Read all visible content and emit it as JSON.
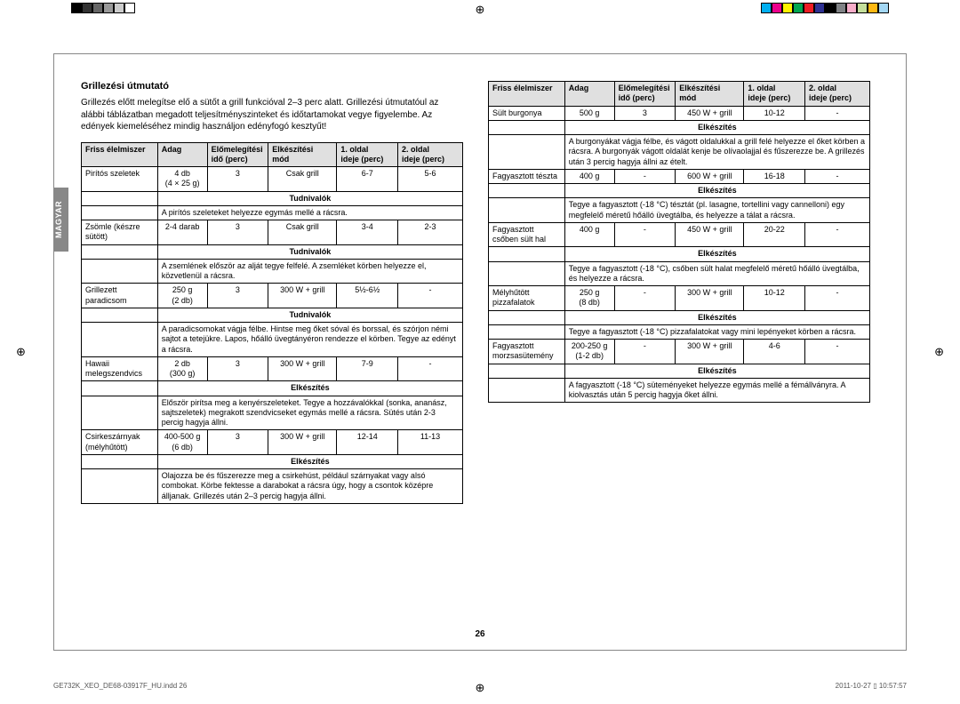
{
  "colorbar_left": [
    "#000000",
    "#333333",
    "#666666",
    "#999999",
    "#cccccc",
    "#ffffff"
  ],
  "colorbar_right": [
    "#00aeef",
    "#ec008c",
    "#fff200",
    "#00a651",
    "#ed1c24",
    "#2e3192",
    "#000000",
    "#808285",
    "#f7adc9",
    "#c4df9b",
    "#fdb813",
    "#a3d7f4"
  ],
  "lang_label": "MAGYAR",
  "title": "Grillezési útmutató",
  "intro": "Grillezés előtt melegítse elő a sütőt a grill funkcióval 2–3 perc alatt.\nGrillezési útmutatóul az alábbi táblázatban megadott teljesítményszinteket és időtartamokat vegye figyelembe. Az edények kiemeléséhez mindig használjon edényfogó kesztyűt!",
  "headers": [
    "Friss élelmiszer",
    "Adag",
    "Előmelegítési idő (perc)",
    "Elkészítési mód",
    "1. oldal ideje (perc)",
    "2. oldal ideje (perc)"
  ],
  "col_widths": [
    "20%",
    "13%",
    "16%",
    "18%",
    "16%",
    "17%"
  ],
  "labels": {
    "tudnivalok": "Tudnivalók",
    "elkeszites": "Elkészítés"
  },
  "left_rows": [
    {
      "type": "data",
      "c": [
        "Pirítós szeletek",
        "4 db\n(4 × 25 g)",
        "3",
        "Csak grill",
        "6-7",
        "5-6"
      ]
    },
    {
      "type": "sub",
      "label": "tudnivalok"
    },
    {
      "type": "note",
      "text": "A pirítós szeleteket helyezze egymás mellé a rácsra."
    },
    {
      "type": "data",
      "c": [
        "Zsömle (készre sütött)",
        "2-4 darab",
        "3",
        "Csak grill",
        "3-4",
        "2-3"
      ]
    },
    {
      "type": "sub",
      "label": "tudnivalok"
    },
    {
      "type": "note",
      "text": "A zsemlének először az alját tegye felfelé. A zsemléket körben helyezze el, közvetlenül a rácsra."
    },
    {
      "type": "data",
      "c": [
        "Grillezett paradicsom",
        "250 g\n(2 db)",
        "3",
        "300 W + grill",
        "5½-6½",
        "-"
      ]
    },
    {
      "type": "sub",
      "label": "tudnivalok"
    },
    {
      "type": "note",
      "text": "A paradicsomokat vágja félbe. Hintse meg őket sóval és borssal, és szórjon némi sajtot a tetejükre. Lapos, hőálló üvegtányéron rendezze el körben. Tegye az edényt a rácsra."
    },
    {
      "type": "data",
      "c": [
        "Hawaii melegszendvics",
        "2 db\n(300 g)",
        "3",
        "300 W + grill",
        "7-9",
        "-"
      ]
    },
    {
      "type": "sub",
      "label": "elkeszites"
    },
    {
      "type": "note",
      "text": "Először pirítsa meg a kenyérszeleteket. Tegye a hozzávalókkal (sonka, ananász, sajtszeletek) megrakott szendvicseket egymás mellé a rácsra. Sütés után 2-3 percig hagyja állni."
    },
    {
      "type": "data",
      "c": [
        "Csirkeszárnyak (mélyhűtött)",
        "400-500 g\n(6 db)",
        "3",
        "300 W + grill",
        "12-14",
        "11-13"
      ]
    },
    {
      "type": "sub",
      "label": "elkeszites"
    },
    {
      "type": "note",
      "text": "Olajozza be és fűszerezze meg a csirkehúst, például szárnyakat vagy alsó combokat. Körbe fektesse a darabokat a rácsra úgy, hogy a csontok középre álljanak. Grillezés után 2–3 percig hagyja állni."
    }
  ],
  "right_rows": [
    {
      "type": "data",
      "c": [
        "Sült burgonya",
        "500 g",
        "3",
        "450 W + grill",
        "10-12",
        "-"
      ]
    },
    {
      "type": "sub",
      "label": "elkeszites"
    },
    {
      "type": "note",
      "text": "A burgonyákat vágja félbe, és vágott oldalukkal a grill felé helyezze el őket körben a rácsra. A burgonyák vágott oldalát kenje be olívaolajjal és fűszerezze be. A grillezés után 3 percig hagyja állni az ételt."
    },
    {
      "type": "data",
      "c": [
        "Fagyasztott tészta",
        "400 g",
        "-",
        "600 W + grill",
        "16-18",
        "-"
      ]
    },
    {
      "type": "sub",
      "label": "elkeszites"
    },
    {
      "type": "note",
      "text": "Tegye a fagyasztott (-18 °C) tésztát (pl. lasagne, tortellini vagy cannelloni) egy megfelelő méretű hőálló üvegtálba, és helyezze a tálat a rácsra."
    },
    {
      "type": "data",
      "c": [
        "Fagyasztott csőben sült hal",
        "400 g",
        "-",
        "450 W + grill",
        "20-22",
        "-"
      ]
    },
    {
      "type": "sub",
      "label": "elkeszites"
    },
    {
      "type": "note",
      "text": "Tegye a fagyasztott (-18 °C), csőben sült halat megfelelő méretű hőálló üvegtálba, és helyezze a rácsra."
    },
    {
      "type": "data",
      "c": [
        "Mélyhűtött pizzafalatok",
        "250 g\n(8 db)",
        "-",
        "300 W + grill",
        "10-12",
        "-"
      ]
    },
    {
      "type": "sub",
      "label": "elkeszites"
    },
    {
      "type": "note",
      "text": "Tegye a fagyasztott (-18 °C) pizzafalatokat vagy mini lepényeket körben a rácsra."
    },
    {
      "type": "data",
      "c": [
        "Fagyasztott morzsasütemény",
        "200-250 g\n(1-2 db)",
        "-",
        "300 W + grill",
        "4-6",
        "-"
      ]
    },
    {
      "type": "sub",
      "label": "elkeszites"
    },
    {
      "type": "note",
      "text": "A fagyasztott (-18 °C) süteményeket helyezze egymás mellé a fémállványra. A kiolvasztás után 5 percig hagyja őket állni."
    }
  ],
  "pagenum": "26",
  "footer_left": "GE732K_XEO_DE68-03917F_HU.indd   26",
  "footer_right": "2011-10-27   ▯ 10:57:57"
}
